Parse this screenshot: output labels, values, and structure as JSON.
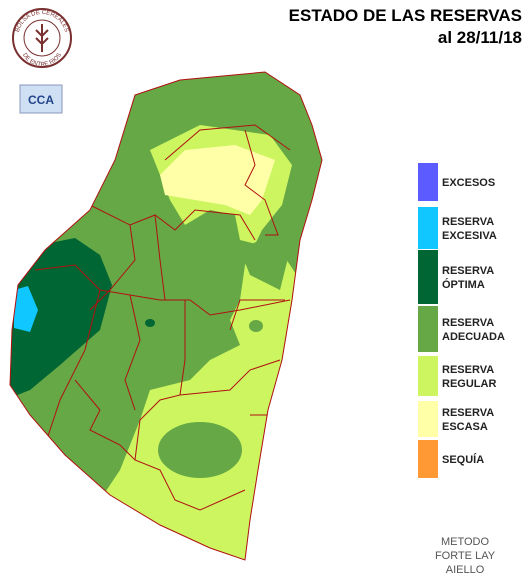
{
  "header": {
    "title": "ESTADO DE LAS RESERVAS",
    "date": "al 28/11/18"
  },
  "logos": {
    "bolsa_top": "BOLSA DE CEREALES",
    "bolsa_bottom": "DE ENTRE RIOS",
    "cca": "CCA"
  },
  "legend": [
    {
      "lines": [
        "EXCESOS"
      ],
      "color": "#5b5bff"
    },
    {
      "lines": [
        "RESERVA",
        "EXCESIVA"
      ],
      "color": "#10c8ff"
    },
    {
      "lines": [
        "RESERVA",
        "ÓPTIMA"
      ],
      "color": "#006633"
    },
    {
      "lines": [
        "RESERVA",
        "ADECUADA"
      ],
      "color": "#66a846"
    },
    {
      "lines": [
        "RESERVA",
        "REGULAR"
      ],
      "color": "#ccf560"
    },
    {
      "lines": [
        "RESERVA",
        "ESCASA"
      ],
      "color": "#ffffa8"
    },
    {
      "lines": [
        "SEQUÍA"
      ],
      "color": "#ff9933"
    }
  ],
  "method": [
    "METODO",
    "FORTE LAY",
    "AIELLO"
  ]
}
